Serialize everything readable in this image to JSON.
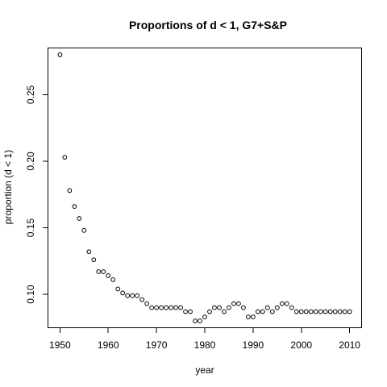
{
  "chart_data": {
    "type": "scatter",
    "title": "Proportions of d < 1, G7+S&P",
    "xlabel": "year",
    "ylabel": "proportion (d < 1)",
    "xlim": [
      1947.6,
      2012.4
    ],
    "ylim": [
      0.0752,
      0.2848
    ],
    "xticks": [
      1950,
      1960,
      1970,
      1980,
      1990,
      2000,
      2010
    ],
    "yticks": [
      0.1,
      0.15,
      0.2,
      0.25
    ],
    "xtick_labels": [
      "1950",
      "1960",
      "1970",
      "1980",
      "1990",
      "2000",
      "2010"
    ],
    "ytick_labels": [
      "0.10",
      "0.15",
      "0.20",
      "0.25"
    ],
    "grid": false,
    "legend": "none",
    "marker": "open-circle",
    "series": [
      {
        "x": [
          1950,
          1951,
          1952,
          1953,
          1954,
          1955,
          1956,
          1957,
          1958,
          1959,
          1960,
          1961,
          1962,
          1963,
          1964,
          1965,
          1966,
          1967,
          1968,
          1969,
          1970,
          1971,
          1972,
          1973,
          1974,
          1975,
          1976,
          1977,
          1978,
          1979,
          1980,
          1981,
          1982,
          1983,
          1984,
          1985,
          1986,
          1987,
          1988,
          1989,
          1990,
          1991,
          1992,
          1993,
          1994,
          1995,
          1996,
          1997,
          1998,
          1999,
          2000,
          2001,
          2002,
          2003,
          2004,
          2005,
          2006,
          2007,
          2008,
          2009,
          2010
        ],
        "y": [
          0.28,
          0.203,
          0.178,
          0.166,
          0.157,
          0.148,
          0.132,
          0.126,
          0.117,
          0.117,
          0.114,
          0.111,
          0.104,
          0.101,
          0.099,
          0.099,
          0.099,
          0.096,
          0.093,
          0.09,
          0.09,
          0.09,
          0.09,
          0.09,
          0.09,
          0.09,
          0.087,
          0.087,
          0.08,
          0.08,
          0.083,
          0.087,
          0.09,
          0.09,
          0.087,
          0.09,
          0.093,
          0.093,
          0.09,
          0.083,
          0.083,
          0.087,
          0.087,
          0.09,
          0.087,
          0.09,
          0.093,
          0.093,
          0.09,
          0.087,
          0.087,
          0.087,
          0.087,
          0.087,
          0.087,
          0.087,
          0.087,
          0.087,
          0.087,
          0.087,
          0.087
        ]
      }
    ]
  }
}
